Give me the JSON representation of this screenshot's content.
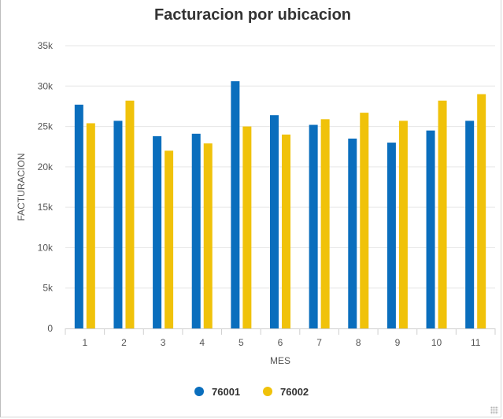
{
  "chart_data": {
    "type": "bar",
    "title": "Facturacion por ubicacion",
    "xlabel": "MES",
    "ylabel": "FACTURACION",
    "categories": [
      "1",
      "2",
      "3",
      "4",
      "5",
      "6",
      "7",
      "8",
      "9",
      "10",
      "11"
    ],
    "ylim": [
      0,
      35000
    ],
    "yticks": [
      0,
      5000,
      10000,
      15000,
      20000,
      25000,
      30000,
      35000
    ],
    "ytick_labels": [
      "0",
      "5k",
      "10k",
      "15k",
      "20k",
      "25k",
      "30k",
      "35k"
    ],
    "grid": true,
    "legend_position": "bottom-center",
    "series": [
      {
        "name": "76001",
        "color": "#0a6ebd",
        "values": [
          27700,
          25700,
          23800,
          24100,
          30600,
          26400,
          25200,
          23500,
          23000,
          24500,
          25700
        ]
      },
      {
        "name": "76002",
        "color": "#f0c20a",
        "values": [
          25400,
          28200,
          22000,
          22900,
          25000,
          24000,
          25900,
          26700,
          25700,
          28200,
          29000
        ]
      }
    ]
  }
}
